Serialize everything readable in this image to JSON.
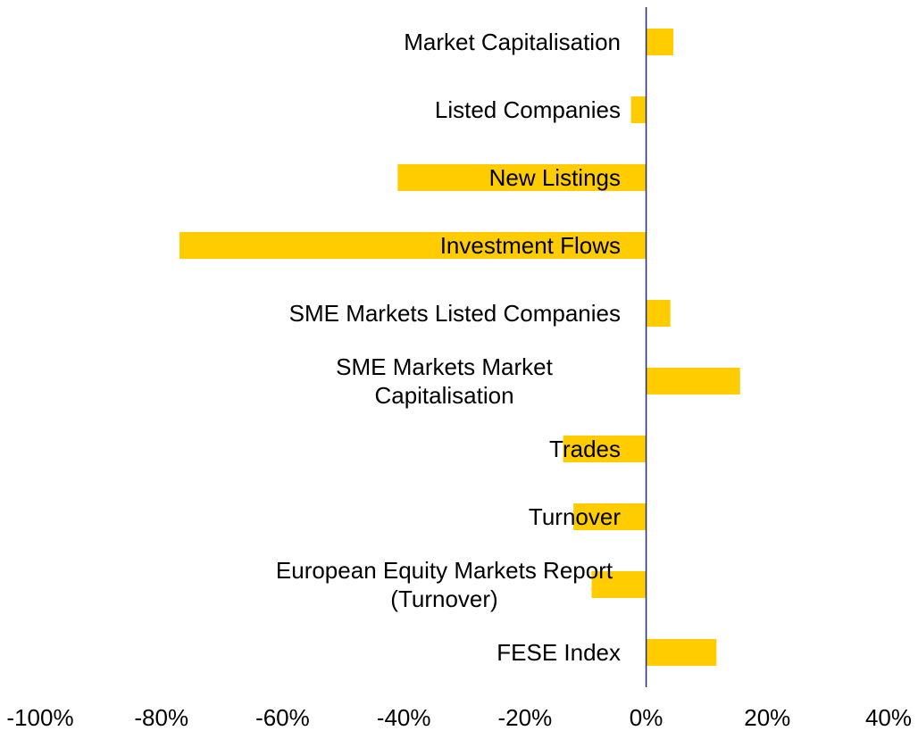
{
  "chart_data": {
    "type": "hbar",
    "categories": [
      "Market Capitalisation",
      "Listed Companies",
      "New Listings",
      "Investment Flows",
      "SME Markets Listed Companies",
      "SME Markets Market Capitalisation",
      "Trades",
      "Turnover",
      "European Equity Markets Report (Turnover)",
      "FESE Index"
    ],
    "values": [
      4.5,
      -2.5,
      -41,
      -77,
      4,
      15.5,
      -13.7,
      -12,
      -9,
      11.6
    ],
    "color": "#ffcc00",
    "xlim": [
      -100,
      40
    ],
    "xticks": [
      {
        "value": -100,
        "label": "-100%"
      },
      {
        "value": -80,
        "label": "-80%"
      },
      {
        "value": -60,
        "label": "-60%"
      },
      {
        "value": -40,
        "label": "-40%"
      },
      {
        "value": -20,
        "label": "-20%"
      },
      {
        "value": 0,
        "label": "0%"
      },
      {
        "value": 20,
        "label": "20%"
      },
      {
        "value": 40,
        "label": "40%"
      }
    ]
  }
}
